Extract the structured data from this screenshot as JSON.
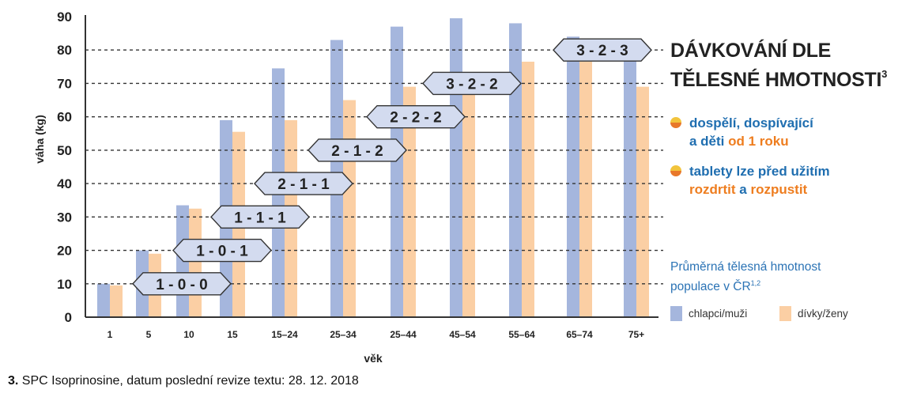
{
  "chart_data": {
    "type": "bar",
    "title": "DÁVKOVÁNÍ DLE TĚLESNÉ HMOTNOSTI",
    "title_line1": "DÁVKOVÁNÍ DLE",
    "title_line2": "TĚLESNÉ HMOTNOSTI",
    "title_sup": "3",
    "xlabel": "věk",
    "ylabel": "váha (kg)",
    "ylim": [
      0,
      90
    ],
    "yticks": [
      0,
      10,
      20,
      30,
      40,
      50,
      60,
      70,
      80,
      90
    ],
    "grid": "dotted horizontal reference lines at 10–80",
    "categories": [
      "1",
      "5",
      "10",
      "15",
      "15–24",
      "25–34",
      "25–44",
      "45–54",
      "55–64",
      "65–74",
      "75+"
    ],
    "series": [
      {
        "name": "chlapci/muži",
        "color": "#a5b6dd",
        "values": [
          10,
          20,
          33.5,
          59,
          74.5,
          83,
          87,
          89.5,
          88,
          84,
          79
        ]
      },
      {
        "name": "dívky/ženy",
        "color": "#fbcfa4",
        "values": [
          9.5,
          19,
          32.5,
          55.5,
          59,
          65,
          69,
          67,
          76.5,
          76.5,
          69
        ]
      }
    ],
    "dosing_labels": [
      {
        "text": "1 - 0 - 0",
        "weight": 10
      },
      {
        "text": "1 - 0 - 1",
        "weight": 20
      },
      {
        "text": "1 - 1 - 1",
        "weight": 30
      },
      {
        "text": "2 - 1 - 1",
        "weight": 40
      },
      {
        "text": "2 - 1 - 2",
        "weight": 50
      },
      {
        "text": "2 - 2 - 2",
        "weight": 60
      },
      {
        "text": "3 - 2 - 2",
        "weight": 70
      },
      {
        "text": "3 - 2 - 3",
        "weight": 80
      }
    ],
    "legend_title": "Průměrná tělesná hmotnost populace v ČR",
    "legend_title_line1": "Průměrná tělesná hmotnost",
    "legend_title_line2": "populace v ČR",
    "legend_title_sup": "1,2",
    "legend_placement": "bottom-right"
  },
  "notes": {
    "n1_line1": "dospělí, dospívající",
    "n1_line2_a": "a děti ",
    "n1_line2_b": "od 1 roku",
    "n2_line1": "tablety lze před užitím",
    "n2_line2_a": "rozdrtit",
    "n2_line2_b": " a ",
    "n2_line2_c": "rozpustit"
  },
  "footnote": {
    "number": "3.",
    "text": " SPC Isoprinosine, datum poslední revize textu: 28. 12. 2018"
  },
  "colors": {
    "blue_text": "#1f6eb0",
    "orange_text": "#ee7d1f",
    "male_bar": "#a5b6dd",
    "female_bar": "#fbcfa4",
    "dose_box": "#d3dbef"
  }
}
